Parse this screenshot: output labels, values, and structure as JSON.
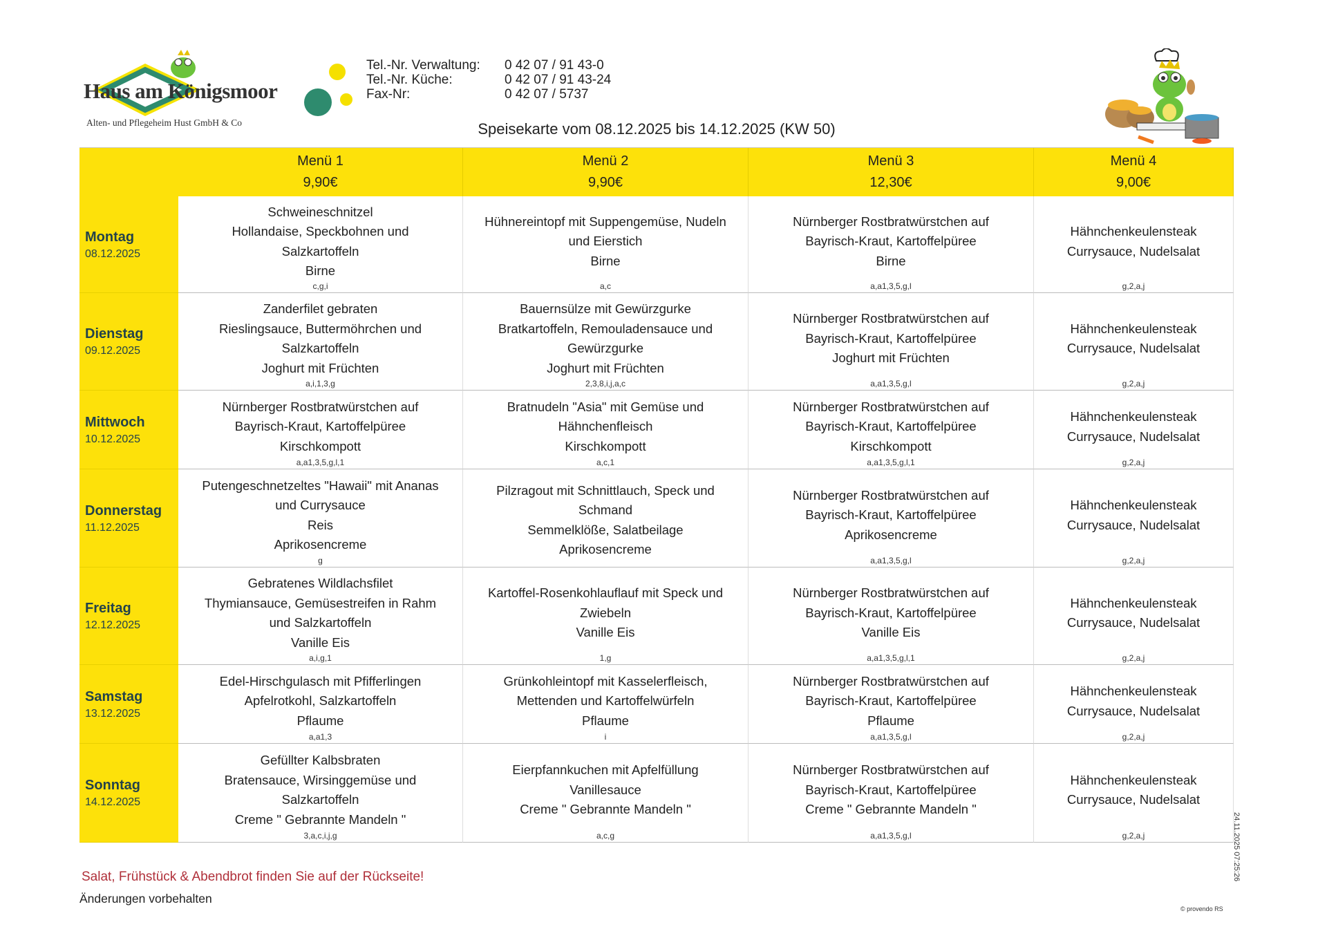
{
  "logo": {
    "name": "Haus am Königsmoor",
    "subtitle": "Alten- und Pflegeheim Hust GmbH & Co"
  },
  "contact": [
    {
      "label": "Tel.-Nr. Verwaltung:",
      "value": "0 42 07 / 91 43-0"
    },
    {
      "label": "Tel.-Nr. Küche:",
      "value": "0 42 07 / 91 43-24"
    },
    {
      "label": "Fax-Nr:",
      "value": "0 42 07 / 5737"
    }
  ],
  "title": "Speisekarte vom 08.12.2025 bis 14.12.2025 (KW 50)",
  "colors": {
    "header_yellow": "#fde10a",
    "note_red": "#b0303a",
    "logo_green": "#2e8b6e"
  },
  "menus": [
    {
      "name": "Menü 1",
      "price": "9,90€"
    },
    {
      "name": "Menü 2",
      "price": "9,90€"
    },
    {
      "name": "Menü 3",
      "price": "12,30€"
    },
    {
      "name": "Menü 4",
      "price": "9,00€"
    }
  ],
  "days": [
    {
      "name": "Montag",
      "date": "08.12.2025",
      "dishes": [
        {
          "lines": [
            "Schweineschnitzel",
            "Hollandaise, Speckbohnen und",
            "Salzkartoffeln",
            "Birne"
          ],
          "codes": "c,g,i"
        },
        {
          "lines": [
            "Hühnereintopf mit Suppengemüse, Nudeln",
            "und Eierstich",
            "Birne"
          ],
          "codes": "a,c"
        },
        {
          "lines": [
            "Nürnberger Rostbratwürstchen auf",
            "Bayrisch-Kraut, Kartoffelpüree",
            "Birne"
          ],
          "codes": "a,a1,3,5,g,l"
        },
        {
          "lines": [
            "Hähnchenkeulensteak",
            "Currysauce, Nudelsalat"
          ],
          "codes": "g,2,a,j"
        }
      ]
    },
    {
      "name": "Dienstag",
      "date": "09.12.2025",
      "dishes": [
        {
          "lines": [
            "Zanderfilet gebraten",
            "Rieslingsauce, Buttermöhrchen und",
            "Salzkartoffeln",
            "Joghurt mit Früchten"
          ],
          "codes": "a,i,1,3,g"
        },
        {
          "lines": [
            "Bauernsülze mit Gewürzgurke",
            "Bratkartoffeln, Remouladensauce und",
            "Gewürzgurke",
            "Joghurt mit Früchten"
          ],
          "codes": "2,3,8,i,j,a,c"
        },
        {
          "lines": [
            "Nürnberger Rostbratwürstchen auf",
            "Bayrisch-Kraut, Kartoffelpüree",
            "Joghurt mit Früchten"
          ],
          "codes": "a,a1,3,5,g,l"
        },
        {
          "lines": [
            "Hähnchenkeulensteak",
            "Currysauce, Nudelsalat"
          ],
          "codes": "g,2,a,j"
        }
      ]
    },
    {
      "name": "Mittwoch",
      "date": "10.12.2025",
      "dishes": [
        {
          "lines": [
            "Nürnberger Rostbratwürstchen auf",
            "Bayrisch-Kraut, Kartoffelpüree",
            "Kirschkompott"
          ],
          "codes": "a,a1,3,5,g,l,1"
        },
        {
          "lines": [
            "Bratnudeln \"Asia\" mit Gemüse und",
            "Hähnchenfleisch",
            "Kirschkompott"
          ],
          "codes": "a,c,1"
        },
        {
          "lines": [
            "Nürnberger Rostbratwürstchen auf",
            "Bayrisch-Kraut, Kartoffelpüree",
            "Kirschkompott"
          ],
          "codes": "a,a1,3,5,g,l,1"
        },
        {
          "lines": [
            "Hähnchenkeulensteak",
            "Currysauce, Nudelsalat"
          ],
          "codes": "g,2,a,j"
        }
      ]
    },
    {
      "name": "Donnerstag",
      "date": "11.12.2025",
      "dishes": [
        {
          "lines": [
            "Putengeschnetzeltes \"Hawaii\" mit Ananas",
            "und Currysauce",
            "Reis",
            "Aprikosencreme"
          ],
          "codes": "g"
        },
        {
          "lines": [
            "Pilzragout mit Schnittlauch, Speck und",
            "Schmand",
            "Semmelklöße, Salatbeilage",
            "Aprikosencreme"
          ],
          "codes": ""
        },
        {
          "lines": [
            "Nürnberger Rostbratwürstchen auf",
            "Bayrisch-Kraut, Kartoffelpüree",
            "Aprikosencreme"
          ],
          "codes": "a,a1,3,5,g,l"
        },
        {
          "lines": [
            "Hähnchenkeulensteak",
            "Currysauce, Nudelsalat"
          ],
          "codes": "g,2,a,j"
        }
      ]
    },
    {
      "name": "Freitag",
      "date": "12.12.2025",
      "dishes": [
        {
          "lines": [
            "Gebratenes Wildlachsfilet",
            "Thymiansauce, Gemüsestreifen in Rahm",
            "und Salzkartoffeln",
            "Vanille Eis"
          ],
          "codes": "a,i,g,1"
        },
        {
          "lines": [
            "Kartoffel-Rosenkohlauflauf mit Speck und",
            "Zwiebeln",
            "Vanille Eis"
          ],
          "codes": "1,g"
        },
        {
          "lines": [
            "Nürnberger Rostbratwürstchen auf",
            "Bayrisch-Kraut, Kartoffelpüree",
            "Vanille Eis"
          ],
          "codes": "a,a1,3,5,g,l,1"
        },
        {
          "lines": [
            "Hähnchenkeulensteak",
            "Currysauce, Nudelsalat"
          ],
          "codes": "g,2,a,j"
        }
      ]
    },
    {
      "name": "Samstag",
      "date": "13.12.2025",
      "dishes": [
        {
          "lines": [
            "Edel-Hirschgulasch mit Pfifferlingen",
            "Apfelrotkohl, Salzkartoffeln",
            "Pflaume"
          ],
          "codes": "a,a1,3"
        },
        {
          "lines": [
            "Grünkohleintopf mit Kasselerfleisch,",
            "Mettenden und Kartoffelwürfeln",
            "Pflaume"
          ],
          "codes": "i"
        },
        {
          "lines": [
            "Nürnberger Rostbratwürstchen auf",
            "Bayrisch-Kraut, Kartoffelpüree",
            "Pflaume"
          ],
          "codes": "a,a1,3,5,g,l"
        },
        {
          "lines": [
            "Hähnchenkeulensteak",
            "Currysauce, Nudelsalat"
          ],
          "codes": "g,2,a,j"
        }
      ]
    },
    {
      "name": "Sonntag",
      "date": "14.12.2025",
      "dishes": [
        {
          "lines": [
            "Gefüllter Kalbsbraten",
            "Bratensauce, Wirsinggemüse und",
            "Salzkartoffeln",
            "Creme \" Gebrannte Mandeln \""
          ],
          "codes": "3,a,c,i,j,g"
        },
        {
          "lines": [
            "Eierpfannkuchen mit Apfelfüllung",
            "Vanillesauce",
            "Creme \" Gebrannte Mandeln \""
          ],
          "codes": "a,c,g"
        },
        {
          "lines": [
            "Nürnberger Rostbratwürstchen auf",
            "Bayrisch-Kraut, Kartoffelpüree",
            "Creme \" Gebrannte Mandeln \""
          ],
          "codes": "a,a1,3,5,g,l"
        },
        {
          "lines": [
            "Hähnchenkeulensteak",
            "Currysauce, Nudelsalat"
          ],
          "codes": "g,2,a,j"
        }
      ]
    }
  ],
  "footer": {
    "note": "Salat, Frühstück & Abendbrot finden Sie auf der Rückseite!",
    "changes": "Änderungen vorbehalten",
    "print_stamp": "24.11.2025 07:25:26",
    "copyright": "© provendo RS"
  },
  "icons": {
    "logo": "frog-prince-logo",
    "chef": "frog-chef-cooking-illustration"
  }
}
